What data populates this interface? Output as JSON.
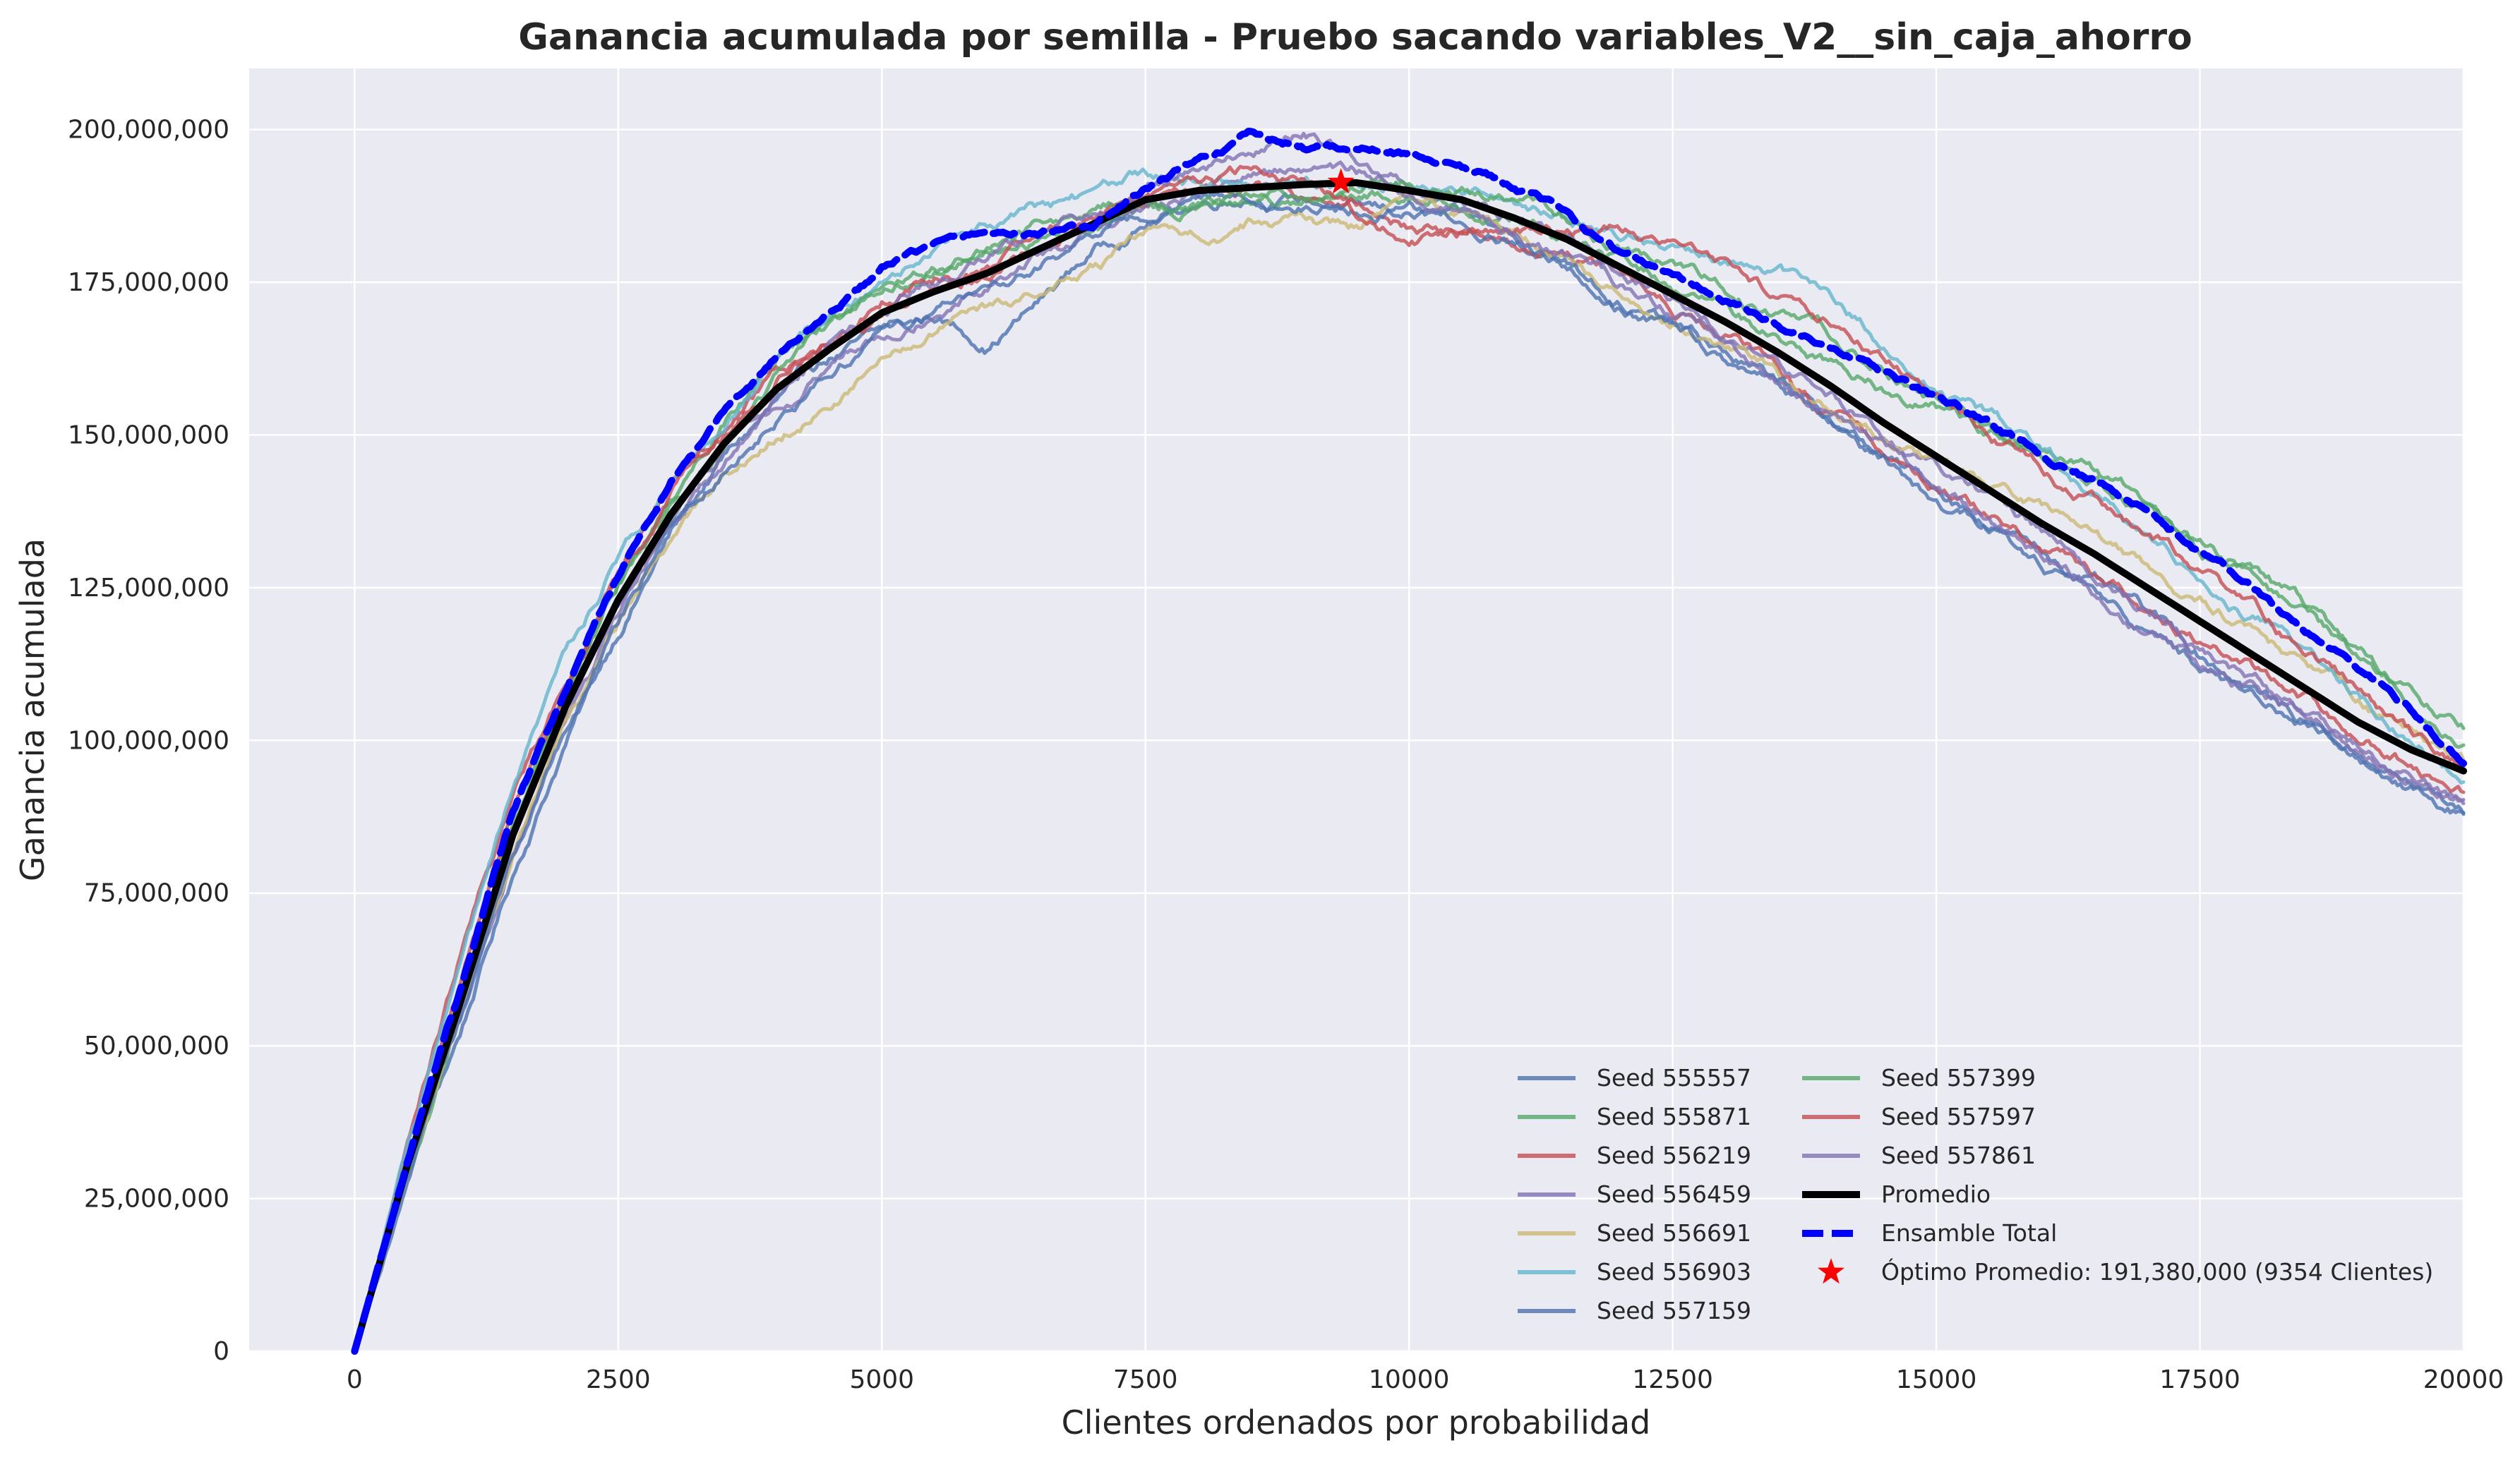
{
  "chart_data": {
    "type": "line",
    "title": "Ganancia acumulada por semilla - Pruebo sacando variables_V2__sin_caja_ahorro",
    "xlabel": "Clientes ordenados por probabilidad",
    "ylabel": "Ganancia acumulada",
    "xlim": [
      -1000,
      20000
    ],
    "ylim": [
      0,
      210000000
    ],
    "x_ticks": [
      0,
      2500,
      5000,
      7500,
      10000,
      12500,
      15000,
      17500,
      20000
    ],
    "x_tick_labels": [
      "0",
      "2500",
      "5000",
      "7500",
      "10000",
      "12500",
      "15000",
      "17500",
      "20000"
    ],
    "y_ticks": [
      0,
      25000000,
      50000000,
      75000000,
      100000000,
      125000000,
      150000000,
      175000000,
      200000000
    ],
    "y_tick_labels": [
      "0",
      "25,000,000",
      "50,000,000",
      "75,000,000",
      "100,000,000",
      "125,000,000",
      "150,000,000",
      "175,000,000",
      "200,000,000"
    ],
    "grid": true,
    "legend_position": "lower-right",
    "x": [
      0,
      500,
      1000,
      1500,
      2000,
      2500,
      3000,
      3500,
      4000,
      4500,
      5000,
      5500,
      6000,
      6500,
      7000,
      7500,
      8000,
      8500,
      9000,
      9500,
      10000,
      10500,
      11000,
      11500,
      12000,
      12500,
      13000,
      13500,
      14000,
      14500,
      15000,
      15500,
      16000,
      16500,
      17000,
      17500,
      18000,
      18500,
      19000,
      19500,
      20000
    ],
    "series": [
      {
        "name": "Seed 555557",
        "color": "#4c72b0",
        "style": "solid",
        "values": [
          0,
          30000000,
          52000000,
          78000000,
          100000000,
          118000000,
          134000000,
          146000000,
          155000000,
          162000000,
          166000000,
          169000000,
          165000000,
          172000000,
          180000000,
          185000000,
          188000000,
          190000000,
          189000000,
          187000000,
          186000000,
          185000000,
          182000000,
          178000000,
          172000000,
          168000000,
          163000000,
          158000000,
          152000000,
          146000000,
          141000000,
          136000000,
          131000000,
          126000000,
          120000000,
          114000000,
          109000000,
          103000000,
          98000000,
          93000000,
          88000000
        ]
      },
      {
        "name": "Seed 555871",
        "color": "#55a868",
        "style": "solid",
        "values": [
          0,
          28000000,
          55000000,
          86000000,
          108000000,
          126000000,
          140000000,
          153000000,
          163000000,
          168000000,
          172000000,
          176000000,
          180000000,
          182000000,
          184000000,
          186000000,
          187000000,
          188000000,
          189000000,
          188000000,
          189000000,
          188000000,
          186000000,
          182000000,
          178000000,
          174000000,
          170000000,
          166000000,
          162000000,
          158000000,
          155000000,
          151000000,
          147000000,
          143000000,
          138000000,
          132000000,
          126000000,
          120000000,
          113000000,
          107000000,
          101000000
        ]
      },
      {
        "name": "Seed 556219",
        "color": "#c44e52",
        "style": "solid",
        "values": [
          0,
          33000000,
          64000000,
          90000000,
          110000000,
          128000000,
          142000000,
          152000000,
          160000000,
          165000000,
          170000000,
          174000000,
          177000000,
          181000000,
          185000000,
          188000000,
          190000000,
          191000000,
          189000000,
          187000000,
          184000000,
          183000000,
          182000000,
          180000000,
          176000000,
          171000000,
          166000000,
          160000000,
          153000000,
          147000000,
          142000000,
          137000000,
          132000000,
          127000000,
          122000000,
          117000000,
          112000000,
          107000000,
          102000000,
          97000000,
          92000000
        ]
      },
      {
        "name": "Seed 556459",
        "color": "#8172b3",
        "style": "solid",
        "values": [
          0,
          31000000,
          56000000,
          82000000,
          104000000,
          120000000,
          136000000,
          147000000,
          156000000,
          162000000,
          168000000,
          172000000,
          176000000,
          180000000,
          183000000,
          186000000,
          189000000,
          192000000,
          194000000,
          193000000,
          191000000,
          189000000,
          186000000,
          182000000,
          177000000,
          172000000,
          167000000,
          162000000,
          156000000,
          150000000,
          145000000,
          139000000,
          134000000,
          128000000,
          122000000,
          116000000,
          111000000,
          105000000,
          100000000,
          95000000,
          90000000
        ]
      },
      {
        "name": "Seed 556691",
        "color": "#ccb974",
        "style": "solid",
        "values": [
          0,
          29000000,
          55000000,
          82000000,
          103000000,
          119000000,
          133000000,
          143000000,
          150000000,
          156000000,
          162000000,
          167000000,
          170000000,
          173000000,
          177000000,
          182000000,
          182000000,
          185000000,
          186000000,
          184000000,
          187000000,
          186000000,
          183000000,
          179000000,
          174000000,
          170000000,
          165000000,
          160000000,
          155000000,
          150000000,
          146000000,
          141000000,
          137000000,
          133000000,
          128000000,
          123000000,
          118000000,
          112000000,
          107000000,
          101000000,
          96000000
        ]
      },
      {
        "name": "Seed 556903",
        "color": "#64b5cd",
        "style": "solid",
        "values": [
          0,
          33000000,
          62000000,
          90000000,
          113000000,
          130000000,
          143000000,
          153000000,
          163000000,
          170000000,
          176000000,
          181000000,
          185000000,
          187000000,
          189000000,
          192000000,
          193000000,
          192000000,
          191000000,
          190000000,
          191000000,
          190000000,
          188000000,
          186000000,
          183000000,
          180000000,
          178000000,
          176000000,
          172000000,
          165000000,
          158000000,
          152000000,
          147000000,
          141000000,
          135000000,
          128000000,
          121000000,
          114000000,
          107000000,
          101000000,
          95000000
        ]
      },
      {
        "name": "Seed 557159",
        "color": "#4c72b0",
        "style": "solid",
        "values": [
          0,
          28000000,
          52000000,
          80000000,
          102000000,
          118000000,
          134000000,
          145000000,
          154000000,
          161000000,
          167000000,
          170000000,
          173000000,
          178000000,
          182000000,
          186000000,
          188000000,
          189000000,
          188000000,
          187000000,
          186000000,
          184000000,
          181000000,
          177000000,
          172000000,
          167000000,
          162000000,
          157000000,
          151000000,
          145000000,
          139000000,
          134000000,
          129000000,
          124000000,
          118000000,
          112000000,
          107000000,
          102000000,
          97000000,
          93000000,
          89000000
        ]
      },
      {
        "name": "Seed 557399",
        "color": "#55a868",
        "style": "solid",
        "values": [
          0,
          30000000,
          58000000,
          86000000,
          108000000,
          125000000,
          139000000,
          150000000,
          160000000,
          167000000,
          173000000,
          177000000,
          181000000,
          184000000,
          186000000,
          188000000,
          188000000,
          189000000,
          190000000,
          190000000,
          192000000,
          191000000,
          188000000,
          185000000,
          181000000,
          177000000,
          173000000,
          169000000,
          165000000,
          160000000,
          156000000,
          152000000,
          148000000,
          144000000,
          139000000,
          133000000,
          127000000,
          121000000,
          114000000,
          108000000,
          102000000
        ]
      },
      {
        "name": "Seed 557597",
        "color": "#c44e52",
        "style": "solid",
        "values": [
          0,
          32000000,
          60000000,
          88000000,
          108000000,
          127000000,
          141000000,
          151000000,
          160000000,
          166000000,
          172000000,
          176000000,
          178000000,
          182000000,
          186000000,
          189000000,
          191000000,
          193000000,
          191000000,
          186000000,
          183000000,
          183000000,
          184000000,
          184000000,
          184000000,
          182000000,
          178000000,
          173000000,
          168000000,
          162000000,
          156000000,
          150000000,
          144000000,
          139000000,
          134000000,
          128000000,
          121000000,
          114000000,
          108000000,
          101000000,
          95000000
        ]
      },
      {
        "name": "Seed 557861",
        "color": "#8172b3",
        "style": "solid",
        "values": [
          0,
          30000000,
          57000000,
          84000000,
          104000000,
          121000000,
          136000000,
          148000000,
          157000000,
          164000000,
          169000000,
          174000000,
          178000000,
          182000000,
          186000000,
          190000000,
          194000000,
          197000000,
          199000000,
          196000000,
          191000000,
          187000000,
          183000000,
          179000000,
          174000000,
          169000000,
          164000000,
          159000000,
          153000000,
          147000000,
          141000000,
          136000000,
          131000000,
          125000000,
          119000000,
          113000000,
          108000000,
          103000000,
          99000000,
          95000000,
          91000000
        ]
      },
      {
        "name": "Promedio",
        "color": "#000000",
        "style": "thick",
        "values": [
          0,
          30500000,
          57000000,
          84500000,
          105500000,
          123000000,
          137000000,
          148500000,
          157500000,
          164000000,
          170000000,
          173500000,
          176500000,
          180500000,
          184500000,
          188500000,
          190000000,
          190500000,
          191000000,
          191300000,
          190000000,
          188500000,
          185500000,
          182000000,
          177500000,
          173000000,
          168500000,
          163500000,
          158000000,
          152000000,
          146500000,
          141000000,
          135500000,
          130500000,
          125000000,
          119500000,
          114000000,
          108500000,
          103000000,
          98500000,
          95000000
        ]
      },
      {
        "name": "Ensamble Total",
        "color": "#0000ff",
        "style": "dashed",
        "values": [
          0,
          31000000,
          59000000,
          88000000,
          108000000,
          127000000,
          142000000,
          153000000,
          163000000,
          170000000,
          177000000,
          181000000,
          183000000,
          183000000,
          184000000,
          190000000,
          195000000,
          199000000,
          197000000,
          197000000,
          196000000,
          194000000,
          191000000,
          186000000,
          180000000,
          176000000,
          172000000,
          168000000,
          164000000,
          160000000,
          156000000,
          152000000,
          147000000,
          142000000,
          137000000,
          131000000,
          125000000,
          118000000,
          112000000,
          105000000,
          96000000
        ]
      }
    ],
    "optimum": {
      "x": 9354,
      "y": 191380000,
      "label": "Óptimo Promedio: 191,380,000 (9354 Clientes)",
      "color": "#ff0000"
    }
  }
}
